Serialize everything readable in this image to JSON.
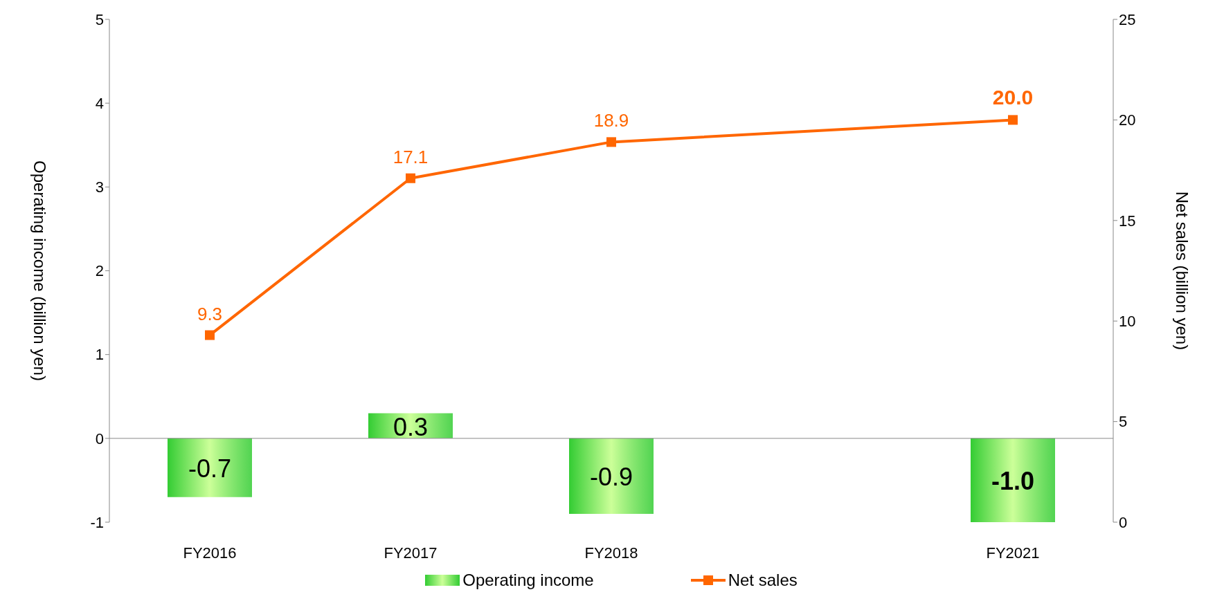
{
  "chart_data": {
    "type": "bar",
    "categories": [
      "FY2016",
      "FY2017",
      "FY2018",
      null,
      "FY2021"
    ],
    "series": [
      {
        "name": "Operating income",
        "color": "#33cc33",
        "values": [
          -0.7,
          0.3,
          -0.9,
          null,
          -1.0
        ],
        "value_labels": [
          "-0.7",
          "0.3",
          "-0.9",
          null,
          "-1.0"
        ]
      },
      {
        "name": "Net sales",
        "type": "line",
        "axis": "y2",
        "color": "#ff6600",
        "values": [
          9.3,
          17.1,
          18.9,
          null,
          20.0
        ],
        "value_labels": [
          "9.3",
          "17.1",
          "18.9",
          null,
          "20.0"
        ]
      }
    ],
    "ylabel": "Operating income (billion yen)",
    "y2label": "Net sales (billion yen)",
    "ylim": [
      -1,
      5
    ],
    "yticks": [
      -1,
      0,
      1,
      2,
      3,
      4,
      5
    ],
    "y2lim": [
      0,
      25
    ],
    "y2ticks": [
      0,
      5,
      10,
      15,
      20,
      25
    ],
    "legend": "bottom",
    "marker": "square",
    "line_style": "solid"
  }
}
